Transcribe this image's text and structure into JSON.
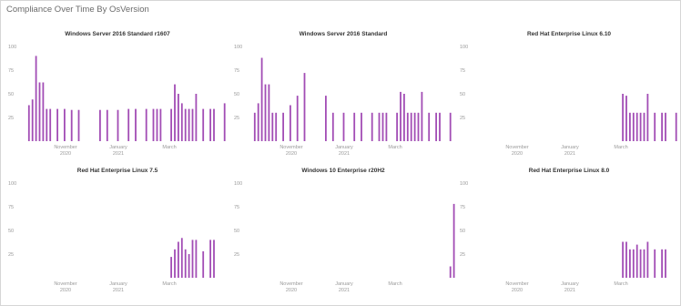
{
  "title": "Compliance Over Time By OsVersion",
  "colors": {
    "bar": "#a24db5",
    "axis_text": "#9a9a9a",
    "title_text": "#333333",
    "grid": "#f3f3f3"
  },
  "chart_data": [
    {
      "type": "bar",
      "title": "Windows Server 2016 Standard r1607",
      "ylim": [
        0,
        100
      ],
      "yticks": [
        "100",
        "75",
        "50",
        "25"
      ],
      "xticks": [
        {
          "line1": "November",
          "line2": "2020",
          "at": 67
        },
        {
          "line1": "January",
          "line2": "2021",
          "at": 125
        },
        {
          "line1": "March",
          "line2": "",
          "at": 181
        }
      ],
      "x": [
        1,
        2,
        3,
        4,
        5,
        6,
        7,
        9,
        11,
        13,
        15,
        21,
        23,
        26,
        29,
        31,
        34,
        36,
        37,
        38,
        41,
        42,
        43,
        44,
        45,
        46,
        47,
        48,
        50,
        52,
        53,
        56
      ],
      "values": [
        38,
        44,
        90,
        62,
        62,
        34,
        34,
        34,
        34,
        33,
        33,
        33,
        33,
        33,
        34,
        34,
        34,
        34,
        34,
        34,
        34,
        60,
        50,
        40,
        34,
        34,
        34,
        50,
        34,
        34,
        34,
        40
      ]
    },
    {
      "type": "bar",
      "title": "Windows Server 2016 Standard",
      "ylim": [
        0,
        100
      ],
      "yticks": [
        "100",
        "75",
        "50",
        "25"
      ],
      "xticks": [
        {
          "line1": "November",
          "line2": "2020",
          "at": 67
        },
        {
          "line1": "January",
          "line2": "2021",
          "at": 125
        },
        {
          "line1": "March",
          "line2": "",
          "at": 181
        }
      ],
      "x": [
        1,
        2,
        3,
        4,
        5,
        6,
        7,
        9,
        11,
        13,
        15,
        21,
        23,
        26,
        29,
        31,
        34,
        36,
        37,
        38,
        41,
        42,
        43,
        44,
        45,
        46,
        47,
        48,
        50,
        52,
        53,
        56
      ],
      "values": [
        30,
        40,
        88,
        60,
        60,
        30,
        30,
        30,
        38,
        48,
        72,
        48,
        30,
        30,
        30,
        30,
        30,
        30,
        30,
        30,
        30,
        52,
        50,
        30,
        30,
        30,
        30,
        52,
        30,
        30,
        30,
        30
      ]
    },
    {
      "type": "bar",
      "title": "Red Hat Enterprise Linux 6.10",
      "ylim": [
        0,
        100
      ],
      "yticks": [
        "100",
        "75",
        "50",
        "25"
      ],
      "xticks": [
        {
          "line1": "November",
          "line2": "2020",
          "at": 67
        },
        {
          "line1": "January",
          "line2": "2021",
          "at": 125
        },
        {
          "line1": "March",
          "line2": "",
          "at": 181
        }
      ],
      "x": [
        41,
        42,
        43,
        44,
        45,
        46,
        47,
        48,
        50,
        52,
        53,
        56
      ],
      "values": [
        50,
        48,
        30,
        30,
        30,
        30,
        30,
        50,
        30,
        30,
        30,
        30
      ]
    },
    {
      "type": "bar",
      "title": "Red Hat Enterprise Linux 7.5",
      "ylim": [
        0,
        100
      ],
      "yticks": [
        "100",
        "75",
        "50",
        "25"
      ],
      "xticks": [
        {
          "line1": "November",
          "line2": "2020",
          "at": 67
        },
        {
          "line1": "January",
          "line2": "2021",
          "at": 125
        },
        {
          "line1": "March",
          "line2": "",
          "at": 181
        }
      ],
      "x": [
        41,
        42,
        43,
        44,
        45,
        46,
        47,
        48,
        50,
        52,
        53
      ],
      "values": [
        22,
        30,
        38,
        42,
        30,
        25,
        40,
        40,
        28,
        40,
        40
      ]
    },
    {
      "type": "bar",
      "title": "Windows 10 Enterprise r20H2",
      "ylim": [
        0,
        100
      ],
      "yticks": [
        "100",
        "75",
        "50",
        "25"
      ],
      "xticks": [
        {
          "line1": "November",
          "line2": "2020",
          "at": 67
        },
        {
          "line1": "January",
          "line2": "2021",
          "at": 125
        },
        {
          "line1": "March",
          "line2": "",
          "at": 181
        }
      ],
      "x": [
        56,
        57
      ],
      "values": [
        12,
        78
      ]
    },
    {
      "type": "bar",
      "title": "Red Hat Enterprise Linux 8.0",
      "ylim": [
        0,
        100
      ],
      "yticks": [
        "100",
        "75",
        "50",
        "25"
      ],
      "xticks": [
        {
          "line1": "November",
          "line2": "2020",
          "at": 67
        },
        {
          "line1": "January",
          "line2": "2021",
          "at": 125
        },
        {
          "line1": "March",
          "line2": "",
          "at": 181
        }
      ],
      "x": [
        41,
        42,
        43,
        44,
        45,
        46,
        47,
        48,
        50,
        52,
        53
      ],
      "values": [
        38,
        38,
        30,
        30,
        35,
        30,
        30,
        38,
        30,
        30,
        30
      ]
    }
  ]
}
